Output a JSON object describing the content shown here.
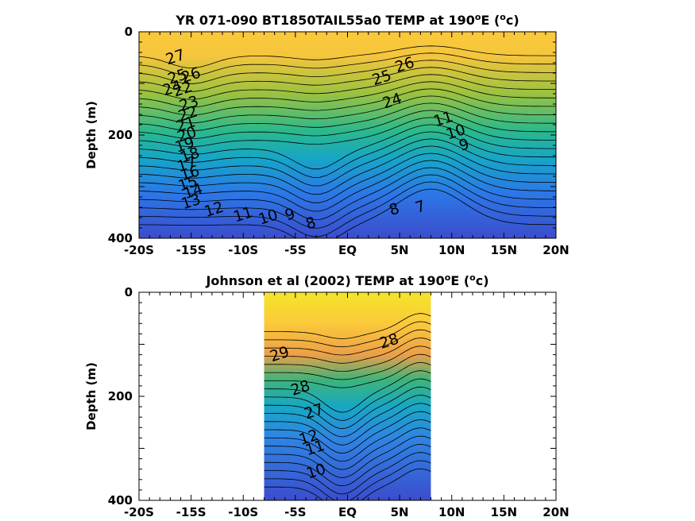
{
  "chart_data": [
    {
      "type": "heatmap",
      "subtype": "filled-contour",
      "title_pre": "YR 071-090 BT1850TAIL55a0 TEMP at 190",
      "title_sup1": "o",
      "title_mid": "E (",
      "title_sup2": "o",
      "title_post": "c)",
      "ylabel": "Depth (m)",
      "xlim": [
        -20,
        20
      ],
      "ylim": [
        400,
        0
      ],
      "xticks": [
        -20,
        -15,
        -10,
        -5,
        0,
        5,
        10,
        15,
        20
      ],
      "xtick_labels": [
        "-20S",
        "-15S",
        "-10S",
        "-5S",
        "EQ",
        "5N",
        "10N",
        "15N",
        "20N"
      ],
      "yticks": [
        0,
        200,
        400
      ],
      "ytick_labels": [
        "0",
        "200",
        "400"
      ],
      "data_extent": [
        -20,
        20
      ],
      "contour_levels_C": [
        7,
        8,
        9,
        10,
        11,
        12,
        13,
        14,
        15,
        16,
        17,
        18,
        19,
        20,
        21,
        22,
        23,
        24,
        25,
        26,
        27
      ],
      "colormap": "parula",
      "contour_labels": [
        {
          "text": "27",
          "lat": -16.5,
          "depth": 50
        },
        {
          "text": "26",
          "lat": -15.0,
          "depth": 85
        },
        {
          "text": "25",
          "lat": -16.3,
          "depth": 88
        },
        {
          "text": "24",
          "lat": -16.8,
          "depth": 110
        },
        {
          "text": "22",
          "lat": -15.8,
          "depth": 112
        },
        {
          "text": "23",
          "lat": -15.2,
          "depth": 140
        },
        {
          "text": "22",
          "lat": -15.3,
          "depth": 160
        },
        {
          "text": "21",
          "lat": -15.5,
          "depth": 180
        },
        {
          "text": "20",
          "lat": -15.4,
          "depth": 200
        },
        {
          "text": "19",
          "lat": -15.6,
          "depth": 220
        },
        {
          "text": "18",
          "lat": -15.1,
          "depth": 240
        },
        {
          "text": "17",
          "lat": -15.4,
          "depth": 258
        },
        {
          "text": "16",
          "lat": -15.1,
          "depth": 275
        },
        {
          "text": "15",
          "lat": -15.3,
          "depth": 295
        },
        {
          "text": "14",
          "lat": -14.8,
          "depth": 310
        },
        {
          "text": "13",
          "lat": -15.0,
          "depth": 330
        },
        {
          "text": "12",
          "lat": -12.8,
          "depth": 345
        },
        {
          "text": "11",
          "lat": -10.0,
          "depth": 355
        },
        {
          "text": "10",
          "lat": -7.6,
          "depth": 360
        },
        {
          "text": "9",
          "lat": -5.5,
          "depth": 355
        },
        {
          "text": "8",
          "lat": -3.5,
          "depth": 372
        },
        {
          "text": "26",
          "lat": 5.5,
          "depth": 65
        },
        {
          "text": "25",
          "lat": 3.3,
          "depth": 90
        },
        {
          "text": "24",
          "lat": 4.3,
          "depth": 135
        },
        {
          "text": "11",
          "lat": 9.2,
          "depth": 170
        },
        {
          "text": "10",
          "lat": 10.4,
          "depth": 195
        },
        {
          "text": "9",
          "lat": 11.2,
          "depth": 220
        },
        {
          "text": "8",
          "lat": 4.5,
          "depth": 345
        },
        {
          "text": "7",
          "lat": 7.0,
          "depth": 340
        }
      ]
    },
    {
      "type": "heatmap",
      "subtype": "filled-contour",
      "title_pre": "Johnson et al (2002) TEMP at 190",
      "title_sup1": "o",
      "title_mid": "E (",
      "title_sup2": "o",
      "title_post": "c)",
      "ylabel": "Depth (m)",
      "xlim": [
        -20,
        20
      ],
      "ylim": [
        400,
        0
      ],
      "xticks": [
        -20,
        -15,
        -10,
        -5,
        0,
        5,
        10,
        15,
        20
      ],
      "xtick_labels": [
        "-20S",
        "-15S",
        "-10S",
        "-5S",
        "EQ",
        "5N",
        "10N",
        "15N",
        "20N"
      ],
      "yticks": [
        0,
        200,
        400
      ],
      "ytick_labels": [
        "0",
        "200",
        "400"
      ],
      "data_extent": [
        -8,
        8
      ],
      "contour_levels_C": [
        10,
        11,
        12,
        13,
        14,
        15,
        16,
        17,
        18,
        19,
        20,
        21,
        22,
        23,
        24,
        25,
        26,
        27,
        28,
        29
      ],
      "colormap": "parula",
      "contour_labels": [
        {
          "text": "29",
          "lat": -6.5,
          "depth": 120
        },
        {
          "text": "28",
          "lat": -4.5,
          "depth": 185
        },
        {
          "text": "28",
          "lat": 4.0,
          "depth": 95
        },
        {
          "text": "27",
          "lat": -3.2,
          "depth": 230
        },
        {
          "text": "12",
          "lat": -3.7,
          "depth": 280
        },
        {
          "text": "11",
          "lat": -3.1,
          "depth": 300
        },
        {
          "text": "10",
          "lat": -3.0,
          "depth": 345
        }
      ]
    }
  ]
}
